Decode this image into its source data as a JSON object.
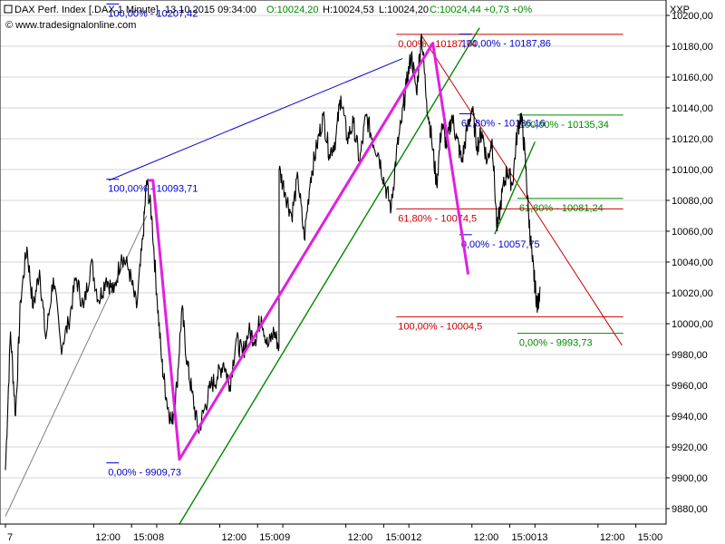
{
  "header": {
    "instrument": "DAX Perf. Index [.DAX  1 Minute]",
    "datetime": "13.10.2015 09:34:00",
    "open": "O:10024,20",
    "high": "H:10024,53",
    "low": "L:10024,20",
    "close": "C:10024,44 +0,73 +0%",
    "website": "© www.tradesignalonline.com",
    "currency": "XXP"
  },
  "colors": {
    "price": "#000000",
    "blue": "#0000cc",
    "red": "#cc0000",
    "green": "#008800",
    "magenta": "#e020e0",
    "gray": "#808080",
    "grid": "#d4d4d4"
  },
  "chart_data": {
    "type": "line",
    "ylim": [
      9870,
      10210
    ],
    "y_ticks": [
      9880,
      9900,
      9920,
      9940,
      9960,
      9980,
      10000,
      10020,
      10040,
      10060,
      10080,
      10100,
      10120,
      10140,
      10160,
      10180,
      10200
    ],
    "y_tick_labels": [
      "9880,00",
      "9900,00",
      "9920,00",
      "9940,00",
      "9960,00",
      "9980,00",
      "10000,00",
      "10020,00",
      "10040,00",
      "10060,00",
      "10080,00",
      "10100,00",
      "10120,00",
      "10140,00",
      "10160,00",
      "10180,00",
      "10200,00"
    ],
    "x_ticks": [
      {
        "t": 0.0,
        "label": "7"
      },
      {
        "t": 7.0,
        "label": "12:00"
      },
      {
        "t": 10.0,
        "label": "15:00"
      },
      {
        "t": 12.0,
        "label": "8"
      },
      {
        "t": 17.0,
        "label": "12:00"
      },
      {
        "t": 20.0,
        "label": "15:00"
      },
      {
        "t": 22.0,
        "label": "9"
      },
      {
        "t": 27.0,
        "label": "12:00"
      },
      {
        "t": 30.0,
        "label": "15:00"
      },
      {
        "t": 32.0,
        "label": "12"
      },
      {
        "t": 37.0,
        "label": "12:00"
      },
      {
        "t": 40.0,
        "label": "15:00"
      },
      {
        "t": 42.0,
        "label": "13"
      },
      {
        "t": 47.0,
        "label": "12:00"
      },
      {
        "t": 50.0,
        "label": "15:00"
      }
    ],
    "series": [
      {
        "points": [
          [
            0.0,
            9905
          ],
          [
            0.4,
            9995
          ],
          [
            0.8,
            9940
          ],
          [
            1.2,
            10015
          ],
          [
            1.7,
            10050
          ],
          [
            2.2,
            10010
          ],
          [
            2.7,
            10035
          ],
          [
            3.2,
            9990
          ],
          [
            3.8,
            10030
          ],
          [
            4.4,
            9985
          ],
          [
            5.0,
            10000
          ],
          [
            5.6,
            10030
          ],
          [
            6.2,
            10010
          ],
          [
            6.8,
            10040
          ],
          [
            7.4,
            10015
          ],
          [
            8.0,
            10030
          ],
          [
            8.6,
            10020
          ],
          [
            9.2,
            10045
          ],
          [
            9.8,
            10035
          ],
          [
            10.4,
            10010
          ],
          [
            10.9,
            10055
          ],
          [
            11.2,
            10093
          ],
          [
            11.6,
            10070
          ],
          [
            12.0,
            10020
          ],
          [
            12.4,
            9975
          ],
          [
            12.8,
            9950
          ],
          [
            13.2,
            9935
          ],
          [
            13.6,
            9960
          ],
          [
            14.0,
            10010
          ],
          [
            14.4,
            9975
          ],
          [
            14.8,
            9955
          ],
          [
            15.3,
            9930
          ],
          [
            15.8,
            9945
          ],
          [
            16.3,
            9960
          ],
          [
            16.8,
            9965
          ],
          [
            17.3,
            9975
          ],
          [
            17.8,
            9960
          ],
          [
            18.3,
            9990
          ],
          [
            18.8,
            9980
          ],
          [
            19.3,
            9995
          ],
          [
            19.8,
            9990
          ],
          [
            20.3,
            10005
          ],
          [
            20.8,
            9985
          ],
          [
            21.3,
            9995
          ],
          [
            21.7,
            9985
          ],
          [
            21.71,
            10100
          ],
          [
            22.2,
            10085
          ],
          [
            22.7,
            10070
          ],
          [
            23.2,
            10095
          ],
          [
            23.7,
            10055
          ],
          [
            24.2,
            10095
          ],
          [
            24.7,
            10115
          ],
          [
            25.2,
            10135
          ],
          [
            25.7,
            10110
          ],
          [
            26.2,
            10120
          ],
          [
            26.6,
            10148
          ],
          [
            27.1,
            10120
          ],
          [
            27.6,
            10130
          ],
          [
            28.1,
            10105
          ],
          [
            28.6,
            10135
          ],
          [
            29.1,
            10120
          ],
          [
            29.6,
            10110
          ],
          [
            30.1,
            10090
          ],
          [
            30.6,
            10075
          ],
          [
            31.0,
            10110
          ],
          [
            31.4,
            10130
          ],
          [
            31.8,
            10155
          ],
          [
            32.2,
            10175
          ],
          [
            32.6,
            10150
          ],
          [
            33.0,
            10188
          ],
          [
            33.4,
            10145
          ],
          [
            33.8,
            10120
          ],
          [
            34.2,
            10090
          ],
          [
            34.6,
            10130
          ],
          [
            35.0,
            10115
          ],
          [
            35.4,
            10135
          ],
          [
            35.8,
            10120
          ],
          [
            36.2,
            10105
          ],
          [
            36.6,
            10125
          ],
          [
            37.0,
            10140
          ],
          [
            37.4,
            10115
          ],
          [
            37.8,
            10125
          ],
          [
            38.2,
            10105
          ],
          [
            38.6,
            10120
          ],
          [
            39.0,
            10060
          ],
          [
            39.4,
            10085
          ],
          [
            39.8,
            10100
          ],
          [
            40.2,
            10090
          ],
          [
            40.6,
            10125
          ],
          [
            40.9,
            10136
          ],
          [
            41.2,
            10110
          ],
          [
            41.5,
            10070
          ],
          [
            41.8,
            10040
          ],
          [
            42.0,
            10025
          ],
          [
            42.2,
            10010
          ],
          [
            42.4,
            10024
          ]
        ]
      }
    ],
    "fib_levels": [
      {
        "label": "100,00% - 10207,42",
        "value": 10207.42,
        "t1": 8.0,
        "t2": 9.0,
        "color": "blue"
      },
      {
        "label": "0,00% - 10187,74",
        "value": 10187.74,
        "t1": 31.0,
        "t2": 49.0,
        "color": "red"
      },
      {
        "label": "100,00% - 10187,86",
        "value": 10187.86,
        "t1": 36.0,
        "t2": 37.0,
        "color": "blue"
      },
      {
        "label": "61,80% - 10136,16",
        "value": 10136.16,
        "t1": 36.0,
        "t2": 37.0,
        "color": "blue"
      },
      {
        "label": "100,00% - 10135,34",
        "value": 10135.34,
        "t1": 40.6,
        "t2": 49.0,
        "color": "green"
      },
      {
        "label": "100,00% - 10093,71",
        "value": 10093.71,
        "t1": 8.0,
        "t2": 9.0,
        "color": "blue"
      },
      {
        "label": "61,80% - 10081,24",
        "value": 10081.24,
        "t1": 40.6,
        "t2": 49.0,
        "color": "green"
      },
      {
        "label": "61,80% - 10074,5",
        "value": 10074.5,
        "t1": 31.0,
        "t2": 49.0,
        "color": "red"
      },
      {
        "label": "0,00% - 10057,75",
        "value": 10057.75,
        "t1": 36.0,
        "t2": 37.0,
        "color": "blue"
      },
      {
        "label": "100,00% - 10004,5",
        "value": 10004.5,
        "t1": 31.0,
        "t2": 49.0,
        "color": "red"
      },
      {
        "label": "0,00% - 9993,73",
        "value": 9993.73,
        "t1": 40.6,
        "t2": 49.0,
        "color": "green"
      },
      {
        "label": "0,00% - 9909,73",
        "value": 9909.73,
        "t1": 8.0,
        "t2": 9.0,
        "color": "blue"
      }
    ],
    "trendlines": [
      {
        "color": "blue",
        "from": [
          8.2,
          10093
        ],
        "to": [
          31.5,
          10172
        ]
      },
      {
        "color": "green",
        "from": [
          13.8,
          9870
        ],
        "to": [
          37.6,
          10192
        ]
      },
      {
        "color": "gray",
        "from": [
          0.0,
          9875
        ],
        "to": [
          11.2,
          10070
        ]
      },
      {
        "color": "red",
        "from": [
          33.0,
          10187
        ],
        "to": [
          48.9,
          9986
        ]
      },
      {
        "color": "green",
        "from": [
          38.8,
          10058
        ],
        "to": [
          42.0,
          10118
        ]
      }
    ],
    "zigzag": [
      [
        11.3,
        10093
      ],
      [
        11.7,
        10093
      ],
      [
        13.8,
        9912
      ],
      [
        33.9,
        10182
      ],
      [
        36.7,
        10032
      ]
    ]
  }
}
